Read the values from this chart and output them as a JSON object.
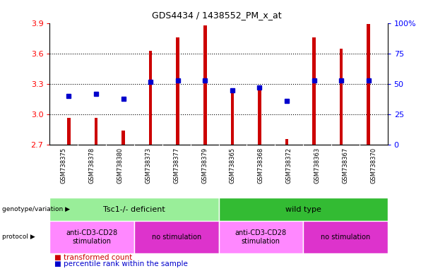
{
  "title": "GDS4434 / 1438552_PM_x_at",
  "samples": [
    "GSM738375",
    "GSM738378",
    "GSM738380",
    "GSM738373",
    "GSM738377",
    "GSM738379",
    "GSM738365",
    "GSM738368",
    "GSM738372",
    "GSM738363",
    "GSM738367",
    "GSM738370"
  ],
  "transformed_count": [
    2.97,
    2.97,
    2.84,
    3.63,
    3.76,
    3.88,
    3.22,
    3.26,
    2.76,
    3.76,
    3.65,
    3.89
  ],
  "percentile_rank": [
    40,
    42,
    38,
    52,
    53,
    53,
    45,
    47,
    36,
    53,
    53,
    53
  ],
  "y_min": 2.7,
  "y_max": 3.9,
  "y_ticks": [
    2.7,
    3.0,
    3.3,
    3.6,
    3.9
  ],
  "right_y_ticks": [
    0,
    25,
    50,
    75,
    100
  ],
  "bar_color": "#cc0000",
  "dot_color": "#0000cc",
  "genotype_groups": [
    {
      "label": "Tsc1-/- deficient",
      "start": 0,
      "end": 5,
      "color": "#99ee99"
    },
    {
      "label": "wild type",
      "start": 6,
      "end": 11,
      "color": "#33bb33"
    }
  ],
  "protocol_groups": [
    {
      "label": "anti-CD3-CD28\nstimulation",
      "start": 0,
      "end": 2,
      "color": "#ff88ff"
    },
    {
      "label": "no stimulation",
      "start": 3,
      "end": 5,
      "color": "#dd33cc"
    },
    {
      "label": "anti-CD3-CD28\nstimulation",
      "start": 6,
      "end": 8,
      "color": "#ff88ff"
    },
    {
      "label": "no stimulation",
      "start": 9,
      "end": 11,
      "color": "#dd33cc"
    }
  ]
}
